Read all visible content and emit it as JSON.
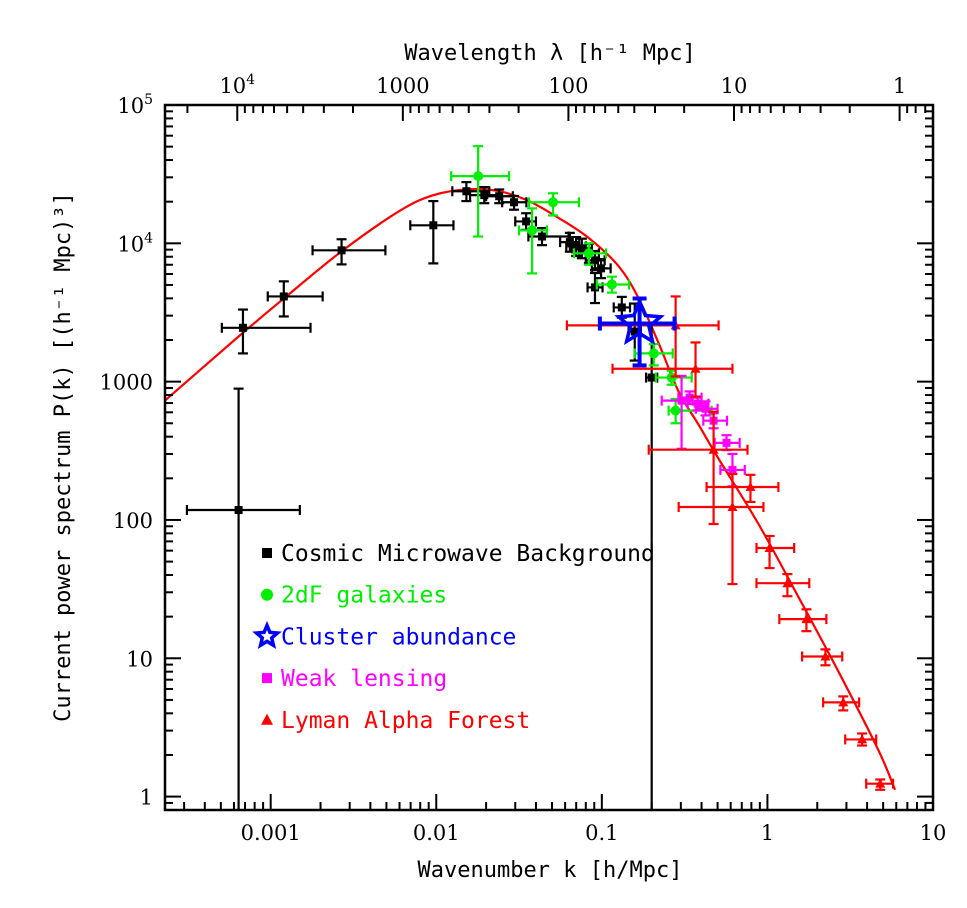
{
  "chart_data": {
    "type": "scatter",
    "xlabel": "Wavenumber k [h/Mpc]",
    "ylabel": "Current power spectrum P(k) [(h⁻¹ Mpc)³]",
    "top_xlabel": "Wavelength λ [h⁻¹ Mpc]",
    "xscale": "log",
    "yscale": "log",
    "xlim": [
      0.00023,
      10
    ],
    "ylim": [
      0.8,
      100000
    ],
    "grid": false,
    "legend_placement": "lower-left",
    "x_ticks": [
      {
        "v": 0.001,
        "label": "0.001"
      },
      {
        "v": 0.01,
        "label": "0.01"
      },
      {
        "v": 0.1,
        "label": "0.1"
      },
      {
        "v": 1,
        "label": "1"
      },
      {
        "v": 10,
        "label": "10"
      }
    ],
    "y_ticks": [
      {
        "v": 1,
        "label": "1"
      },
      {
        "v": 10,
        "label": "10"
      },
      {
        "v": 100,
        "label": "100"
      },
      {
        "v": 1000,
        "label": "1000"
      },
      {
        "v": 10000,
        "base": "10",
        "exp": "4"
      },
      {
        "v": 100000,
        "base": "10",
        "exp": "5"
      }
    ],
    "top_ticks": [
      {
        "v": 10000,
        "base": "10",
        "exp": "4"
      },
      {
        "v": 1000,
        "label": "1000"
      },
      {
        "v": 100,
        "label": "100"
      },
      {
        "v": 10,
        "label": "10"
      },
      {
        "v": 1,
        "label": "1"
      }
    ],
    "model_curve": {
      "color": "#ff0000",
      "k": [
        0.00023,
        0.00064,
        0.0012,
        0.00268,
        0.00598,
        0.0096,
        0.0158,
        0.024,
        0.0363,
        0.0551,
        0.0835,
        0.1266,
        0.167,
        0.221,
        0.291,
        0.384,
        0.507,
        0.883,
        1.54,
        2.68,
        4.66,
        5.9
      ],
      "P": [
        730,
        2120,
        3990,
        8750,
        17100,
        22300,
        24600,
        23800,
        20200,
        15200,
        10900,
        6810,
        3990,
        1880,
        847,
        488,
        277,
        93.5,
        27.7,
        8.05,
        2.19,
        1.12
      ]
    },
    "series": [
      {
        "name": "Cosmic Microwave Background",
        "color": "#000000",
        "marker": "square",
        "points": [
          {
            "k": 0.00064,
            "P": 118,
            "k_err": [
              0.000312,
              0.0015
            ],
            "P_err": [
              0.8,
              890
            ]
          },
          {
            "k": 0.00068,
            "P": 2450,
            "k_err": [
              0.000507,
              0.00174
            ],
            "P_err": [
              1600,
              3320
            ]
          },
          {
            "k": 0.0012,
            "P": 4130,
            "k_err": [
              0.00096,
              0.00206
            ],
            "P_err": [
              2960,
              5310
            ]
          },
          {
            "k": 0.00268,
            "P": 8900,
            "k_err": [
              0.00179,
              0.00493
            ],
            "P_err": [
              7040,
              10700
            ]
          },
          {
            "k": 0.0096,
            "P": 13500,
            "k_err": [
              0.00697,
              0.0127
            ],
            "P_err": [
              7160,
              20200
            ]
          },
          {
            "k": 0.0152,
            "P": 23800,
            "k_err": [
              0.0125,
              0.0209
            ],
            "P_err": [
              20200,
              27700
            ]
          },
          {
            "k": 0.0195,
            "P": 22300,
            "k_err": [
              0.016,
              0.024
            ],
            "P_err": [
              19500,
              25500
            ]
          },
          {
            "k": 0.024,
            "P": 21900,
            "k_err": [
              0.02,
              0.029
            ],
            "P_err": [
              19500,
              24500
            ]
          },
          {
            "k": 0.0295,
            "P": 19800,
            "k_err": [
              0.025,
              0.035
            ],
            "P_err": [
              17500,
              22000
            ]
          },
          {
            "k": 0.0349,
            "P": 14400,
            "k_err": [
              0.03,
              0.04
            ],
            "P_err": [
              12500,
              16500
            ]
          },
          {
            "k": 0.0435,
            "P": 11200,
            "k_err": [
              0.036,
              0.063
            ],
            "P_err": [
              9700,
              12900
            ]
          },
          {
            "k": 0.0641,
            "P": 10200,
            "k_err": [
              0.056,
              0.073
            ],
            "P_err": [
              8700,
              11900
            ]
          },
          {
            "k": 0.0699,
            "P": 9510,
            "k_err": [
              0.061,
              0.08
            ],
            "P_err": [
              8100,
              11100
            ]
          },
          {
            "k": 0.0757,
            "P": 9200,
            "k_err": [
              0.066,
              0.087
            ],
            "P_err": [
              7800,
              10800
            ]
          },
          {
            "k": 0.0835,
            "P": 8470,
            "k_err": [
              0.073,
              0.096
            ],
            "P_err": [
              7200,
              9900
            ]
          },
          {
            "k": 0.0909,
            "P": 7530,
            "k_err": [
              0.08,
              0.104
            ],
            "P_err": [
              6400,
              8800
            ]
          },
          {
            "k": 0.0989,
            "P": 6590,
            "k_err": [
              0.087,
              0.113
            ],
            "P_err": [
              5600,
              7700
            ]
          },
          {
            "k": 0.0909,
            "P": 4800,
            "k_err": [
              0.082,
              0.101
            ],
            "P_err": [
              3700,
              6100
            ]
          },
          {
            "k": 0.132,
            "P": 3440,
            "k_err": [
              0.118,
              0.148
            ],
            "P_err": [
              2900,
              4100
            ]
          },
          {
            "k": 0.158,
            "P": 2300,
            "k_err": [
              0.145,
              0.172
            ],
            "P_err": [
              1420,
              3670
            ]
          },
          {
            "k": 0.2,
            "P": 1070,
            "k_err": [
              0.185,
              0.216
            ],
            "P_err": [
              0.8,
              2550
            ]
          }
        ]
      },
      {
        "name": "2dF galaxies",
        "color": "#00ee00",
        "marker": "circle",
        "points": [
          {
            "k": 0.0179,
            "P": 30600,
            "k_err": [
              0.0123,
              0.0275
            ],
            "P_err": [
              11200,
              50400
            ]
          },
          {
            "k": 0.0507,
            "P": 19800,
            "k_err": [
              0.0363,
              0.0727
            ],
            "P_err": [
              15900,
              23000
            ]
          },
          {
            "k": 0.0379,
            "P": 12400,
            "k_err": [
              0.0316,
              0.0466
            ],
            "P_err": [
              6060,
              17900
            ]
          },
          {
            "k": 0.0835,
            "P": 8470,
            "k_err": [
              0.0678,
              0.106
            ],
            "P_err": [
              7000,
              10000
            ]
          },
          {
            "k": 0.115,
            "P": 5040,
            "k_err": [
              0.0933,
              0.146
            ],
            "P_err": [
              4400,
              5740
            ]
          },
          {
            "k": 0.206,
            "P": 1600,
            "k_err": [
              0.158,
              0.268
            ],
            "P_err": [
              1310,
              1870
            ]
          },
          {
            "k": 0.264,
            "P": 1070,
            "k_err": [
              0.212,
              0.349
            ],
            "P_err": [
              950,
              1200
            ]
          },
          {
            "k": 0.279,
            "P": 617,
            "k_err": [
              0.253,
              0.46
            ],
            "P_err": [
              500,
              750
            ]
          }
        ]
      },
      {
        "name": "Cluster abundance",
        "color": "#0000ff",
        "marker": "star",
        "points": [
          {
            "k": 0.169,
            "P": 2630,
            "k_err": [
              0.0973,
              0.275
            ],
            "P_err": [
              1310,
              3990
            ]
          }
        ]
      },
      {
        "name": "Weak lensing",
        "color": "#ff00ff",
        "marker": "square",
        "points": [
          {
            "k": 0.303,
            "P": 729,
            "k_err": [
              0.23,
              0.353
            ],
            "P_err": [
              327,
              1100
            ]
          },
          {
            "k": 0.339,
            "P": 766,
            "k_err": [
              0.29,
              0.4
            ],
            "P_err": [
              690,
              850
            ]
          },
          {
            "k": 0.379,
            "P": 693,
            "k_err": [
              0.33,
              0.44
            ],
            "P_err": [
              620,
              780
            ]
          },
          {
            "k": 0.423,
            "P": 637,
            "k_err": [
              0.37,
              0.5
            ],
            "P_err": [
              570,
              720
            ]
          },
          {
            "k": 0.473,
            "P": 522,
            "k_err": [
              0.41,
              0.57
            ],
            "P_err": [
              460,
              590
            ]
          },
          {
            "k": 0.566,
            "P": 361,
            "k_err": [
              0.48,
              0.68
            ],
            "P_err": [
              320,
              410
            ]
          },
          {
            "k": 0.615,
            "P": 230,
            "k_err": [
              0.52,
              0.73
            ],
            "P_err": [
              175,
              300
            ]
          }
        ]
      },
      {
        "name": "Lyman Alpha Forest",
        "color": "#ff0000",
        "marker": "triangle",
        "points": [
          {
            "k": 0.279,
            "P": 2550,
            "k_err": [
              0.0615,
              0.507
            ],
            "P_err": [
              1090,
              4130
            ]
          },
          {
            "k": 0.368,
            "P": 1240,
            "k_err": [
              0.116,
              0.615
            ],
            "P_err": [
              779,
              1920
            ]
          },
          {
            "k": 0.473,
            "P": 322,
            "k_err": [
              0.192,
              0.758
            ],
            "P_err": [
              93.5,
              606
            ]
          },
          {
            "k": 0.79,
            "P": 173,
            "k_err": [
              0.429,
              1.165
            ],
            "P_err": [
              135,
              212
            ]
          },
          {
            "k": 0.615,
            "P": 124,
            "k_err": [
              0.291,
              0.946
            ],
            "P_err": [
              34.4,
              215
            ]
          },
          {
            "k": 1.03,
            "P": 62.7,
            "k_err": [
              0.859,
              1.45
            ],
            "P_err": [
              44.9,
              76.6
            ]
          },
          {
            "k": 1.32,
            "P": 34.9,
            "k_err": [
              0.859,
              1.79
            ],
            "P_err": [
              28.1,
              40.6
            ]
          },
          {
            "k": 1.72,
            "P": 19.2,
            "k_err": [
              1.18,
              2.27
            ],
            "P_err": [
              15.7,
              22.6
            ]
          },
          {
            "k": 2.24,
            "P": 10.3,
            "k_err": [
              1.62,
              2.83
            ],
            "P_err": [
              8.9,
              11.6
            ]
          },
          {
            "k": 2.87,
            "P": 4.8,
            "k_err": [
              2.17,
              3.58
            ],
            "P_err": [
              4.2,
              5.3
            ]
          },
          {
            "k": 3.73,
            "P": 2.59,
            "k_err": [
              2.95,
              4.54
            ],
            "P_err": [
              2.34,
              2.86
            ]
          },
          {
            "k": 4.8,
            "P": 1.24,
            "k_err": [
              3.95,
              5.74
            ],
            "P_err": [
              1.12,
              1.33
            ]
          }
        ]
      }
    ]
  }
}
